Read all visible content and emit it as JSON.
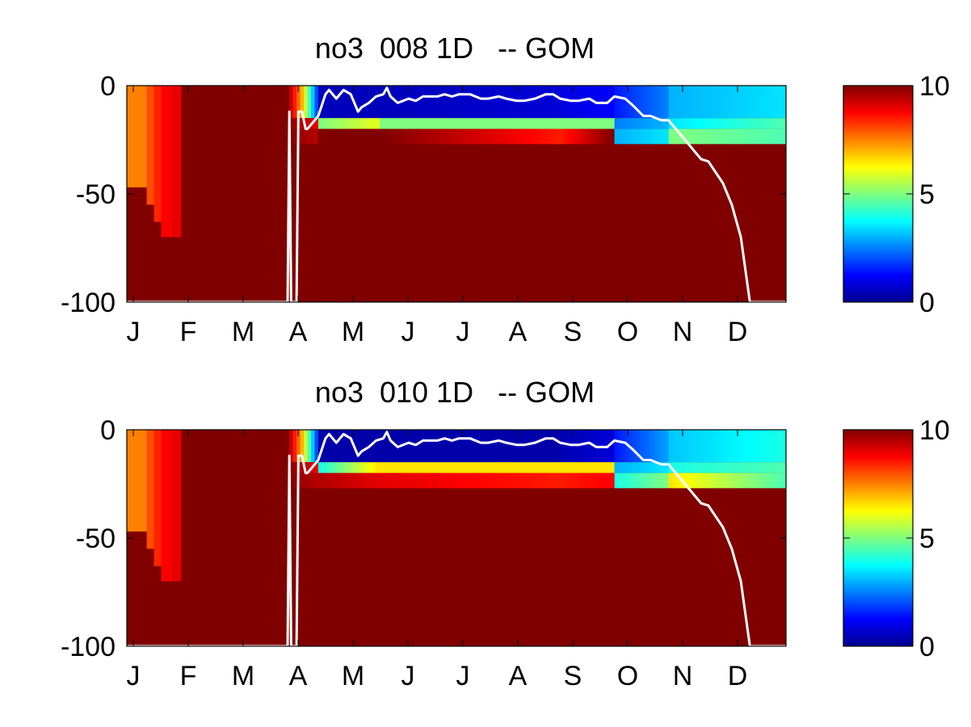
{
  "colors": {
    "deep": "#800000",
    "surface_line": "#ffffff",
    "axes": "#000000",
    "background": "#ffffff"
  },
  "colormap": "jet",
  "chart_data": [
    {
      "type": "heatmap",
      "title": "no3  008 1D   -- GOM",
      "xlabel": "",
      "ylabel": "",
      "x_ticks": [
        "J",
        "F",
        "M",
        "A",
        "M",
        "J",
        "J",
        "A",
        "S",
        "O",
        "N",
        "D"
      ],
      "y_ticks": [
        "0",
        "-50",
        "-100"
      ],
      "ylim": [
        -100,
        0
      ],
      "clim": [
        0,
        10
      ],
      "colorbar_ticks": [
        "10",
        "5",
        "0"
      ],
      "grid": false,
      "panel_role": "top",
      "profiles": [
        {
          "day": 0,
          "top_value": 7.5,
          "mixed_depth": 47,
          "deep_value": 10
        },
        {
          "day": 11,
          "top_value": 8.0,
          "mixed_depth": 55,
          "deep_value": 10
        },
        {
          "day": 15,
          "top_value": 8.4,
          "mixed_depth": 63,
          "deep_value": 10
        },
        {
          "day": 19,
          "top_value": 8.8,
          "mixed_depth": 70,
          "deep_value": 10
        },
        {
          "day": 25,
          "top_value": 9.0,
          "mixed_depth": 70,
          "deep_value": 10
        },
        {
          "day": 30,
          "top_value": 10,
          "mixed_depth": 100,
          "deep_value": 10
        }
      ],
      "bloom_layers": [
        {
          "start": 88,
          "end": 106,
          "surface": [
            10,
            7,
            2
          ],
          "layer_15_20": [
            10,
            9.5,
            9
          ],
          "layer_20_27": [
            10,
            9.7,
            9.5
          ]
        },
        {
          "start": 106,
          "end": 140,
          "surface": [
            0.5,
            0.5
          ],
          "layer_15_20": [
            5,
            6
          ],
          "layer_20_27": [
            10,
            10
          ]
        },
        {
          "start": 140,
          "end": 240,
          "surface": [
            0.5,
            0.8
          ],
          "layer_15_20": [
            5,
            5
          ],
          "layer_20_27": [
            10,
            8.5
          ]
        },
        {
          "start": 240,
          "end": 270,
          "surface": [
            0.9,
            1.2
          ],
          "layer_15_20": [
            5,
            5
          ],
          "layer_20_27": [
            8.5,
            10
          ]
        },
        {
          "start": 270,
          "end": 300,
          "surface": [
            1.5,
            2.5
          ],
          "layer_15_20": [
            2.5,
            3
          ],
          "layer_20_27": [
            3,
            3.5
          ]
        },
        {
          "start": 300,
          "end": 365,
          "surface": [
            3,
            3.5
          ],
          "layer_15_20": [
            3.5,
            4.5
          ],
          "layer_20_27": [
            5,
            4.5
          ]
        }
      ],
      "mixed_layer_depth": {
        "days": [
          0,
          89,
          90,
          91,
          94,
          95,
          97,
          99,
          100,
          104,
          106,
          110,
          112,
          116,
          120,
          124,
          128,
          130,
          134,
          138,
          142,
          144,
          146,
          150,
          156,
          160,
          164,
          168,
          172,
          176,
          180,
          184,
          190,
          196,
          200,
          206,
          210,
          216,
          220,
          226,
          232,
          236,
          240,
          246,
          250,
          256,
          260,
          266,
          270,
          276,
          280,
          286,
          290,
          296,
          300,
          306,
          312,
          318,
          322,
          326,
          330,
          335,
          340,
          345,
          350,
          355,
          360,
          365
        ],
        "depth": [
          100,
          100,
          12,
          100,
          100,
          12,
          12,
          20,
          20,
          16,
          14,
          4,
          2,
          6,
          2,
          4,
          12,
          10,
          8,
          5,
          4,
          1,
          5,
          8,
          6,
          7,
          5,
          5,
          5,
          4,
          5,
          4,
          4,
          6,
          6,
          5,
          6,
          7,
          7,
          6,
          4,
          4,
          6,
          7,
          7,
          6,
          8,
          8,
          5,
          6,
          9,
          14,
          14,
          16,
          16,
          22,
          28,
          34,
          35,
          40,
          45,
          55,
          70,
          100,
          100,
          100,
          100,
          100
        ]
      }
    },
    {
      "type": "heatmap",
      "title": "no3  010 1D   -- GOM",
      "xlabel": "",
      "ylabel": "",
      "x_ticks": [
        "J",
        "F",
        "M",
        "A",
        "M",
        "J",
        "J",
        "A",
        "S",
        "O",
        "N",
        "D"
      ],
      "y_ticks": [
        "0",
        "-50",
        "-100"
      ],
      "ylim": [
        -100,
        0
      ],
      "clim": [
        0,
        10
      ],
      "colorbar_ticks": [
        "10",
        "5",
        "0"
      ],
      "grid": false,
      "panel_role": "bottom",
      "profiles": [
        {
          "day": 0,
          "top_value": 7.5,
          "mixed_depth": 47,
          "deep_value": 10
        },
        {
          "day": 11,
          "top_value": 8.0,
          "mixed_depth": 55,
          "deep_value": 10
        },
        {
          "day": 15,
          "top_value": 8.4,
          "mixed_depth": 63,
          "deep_value": 10
        },
        {
          "day": 19,
          "top_value": 8.8,
          "mixed_depth": 70,
          "deep_value": 10
        },
        {
          "day": 25,
          "top_value": 9.0,
          "mixed_depth": 70,
          "deep_value": 10
        },
        {
          "day": 30,
          "top_value": 10,
          "mixed_depth": 100,
          "deep_value": 10
        }
      ],
      "bloom_layers": [
        {
          "start": 88,
          "end": 106,
          "surface": [
            10,
            7,
            2
          ],
          "layer_15_20": [
            10,
            9.5,
            9
          ],
          "layer_20_27": [
            10,
            9.7,
            9.5
          ]
        },
        {
          "start": 106,
          "end": 140,
          "surface": [
            0.3,
            0.3
          ],
          "layer_15_20": [
            4,
            6.5
          ],
          "layer_20_27": [
            9.5,
            9
          ]
        },
        {
          "start": 140,
          "end": 240,
          "surface": [
            0.3,
            0.3
          ],
          "layer_15_20": [
            6.5,
            6.5
          ],
          "layer_20_27": [
            9,
            8.5
          ]
        },
        {
          "start": 240,
          "end": 270,
          "surface": [
            0.4,
            0.8
          ],
          "layer_15_20": [
            6.5,
            6.5
          ],
          "layer_20_27": [
            8.5,
            8.8
          ]
        },
        {
          "start": 270,
          "end": 300,
          "surface": [
            1.5,
            2.8
          ],
          "layer_15_20": [
            3,
            3.5
          ],
          "layer_20_27": [
            4,
            5
          ]
        },
        {
          "start": 300,
          "end": 365,
          "surface": [
            3.2,
            4
          ],
          "layer_15_20": [
            4,
            4.5
          ],
          "layer_20_27": [
            6.5,
            4.5
          ]
        }
      ],
      "mixed_layer_depth": {
        "days": [
          0,
          89,
          90,
          91,
          94,
          95,
          97,
          99,
          100,
          104,
          106,
          110,
          112,
          116,
          120,
          124,
          128,
          130,
          134,
          138,
          142,
          144,
          146,
          150,
          156,
          160,
          164,
          168,
          172,
          176,
          180,
          184,
          190,
          196,
          200,
          206,
          210,
          216,
          220,
          226,
          232,
          236,
          240,
          246,
          250,
          256,
          260,
          266,
          270,
          276,
          280,
          286,
          290,
          296,
          300,
          306,
          312,
          318,
          322,
          326,
          330,
          335,
          340,
          345,
          350,
          355,
          360,
          365
        ],
        "depth": [
          100,
          100,
          12,
          100,
          100,
          12,
          12,
          20,
          20,
          16,
          14,
          4,
          2,
          6,
          2,
          4,
          12,
          10,
          8,
          5,
          4,
          1,
          5,
          8,
          6,
          7,
          5,
          5,
          5,
          4,
          5,
          4,
          4,
          6,
          6,
          5,
          6,
          7,
          7,
          6,
          4,
          4,
          6,
          7,
          7,
          6,
          8,
          8,
          5,
          6,
          9,
          14,
          14,
          16,
          16,
          22,
          28,
          34,
          35,
          40,
          45,
          55,
          70,
          100,
          100,
          100,
          100,
          100
        ]
      }
    }
  ]
}
